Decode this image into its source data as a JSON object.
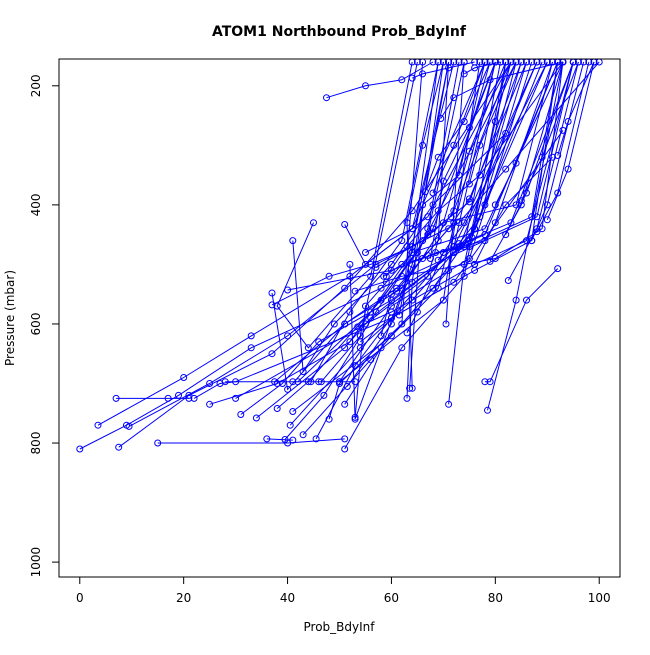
{
  "chart_data": {
    "type": "line",
    "title": "ATOM1 Northbound Prob_BdyInf",
    "xlabel": "Prob_BdyInf",
    "ylabel": "Pressure (mbar)",
    "xlim": [
      -4,
      104
    ],
    "ylim": [
      1025,
      155
    ],
    "y_reversed": true,
    "grid": false,
    "legend": "none",
    "xticks": [
      0,
      20,
      40,
      60,
      80,
      100
    ],
    "yticks": [
      200,
      400,
      600,
      800,
      1000
    ],
    "series_color": "#0000ff",
    "marker": "open-circle",
    "series": [
      {
        "x": [
          0,
          9,
          19,
          33,
          58,
          88,
          95
        ],
        "y": [
          810,
          770,
          720,
          640,
          540,
          420,
          160
        ]
      },
      {
        "x": [
          3.5,
          20,
          33,
          52,
          67,
          83
        ],
        "y": [
          770,
          690,
          620,
          520,
          420,
          160
        ]
      },
      {
        "x": [
          7.5,
          21,
          37,
          51,
          64,
          83
        ],
        "y": [
          807,
          720,
          650,
          540,
          410,
          160
        ]
      },
      {
        "x": [
          7,
          17,
          21
        ],
        "y": [
          725,
          725,
          725
        ]
      },
      {
        "x": [
          9.5,
          25,
          40,
          57,
          73,
          82,
          100
        ],
        "y": [
          772,
          700,
          620,
          500,
          430,
          340,
          160
        ]
      },
      {
        "x": [
          15,
          40,
          51
        ],
        "y": [
          800,
          800,
          793
        ]
      },
      {
        "x": [
          22,
          27,
          30,
          60,
          72,
          93
        ],
        "y": [
          725,
          700,
          697,
          590,
          530,
          275
        ]
      },
      {
        "x": [
          25,
          38,
          52,
          64,
          78,
          93
        ],
        "y": [
          735,
          700,
          630,
          480,
          440,
          160
        ]
      },
      {
        "x": [
          28,
          41,
          46,
          53
        ],
        "y": [
          697,
          697,
          697,
          697
        ]
      },
      {
        "x": [
          31,
          39,
          46,
          60,
          75,
          85
        ],
        "y": [
          752,
          700,
          630,
          560,
          460,
          160
        ]
      },
      {
        "x": [
          30,
          55,
          67,
          79
        ],
        "y": [
          725,
          600,
          520,
          160
        ]
      },
      {
        "x": [
          34,
          51,
          56,
          72,
          87,
          92
        ],
        "y": [
          758,
          640,
          590,
          480,
          420,
          160
        ]
      },
      {
        "x": [
          36,
          41
        ],
        "y": [
          793,
          795
        ]
      },
      {
        "x": [
          37.5,
          51,
          62,
          72,
          83
        ],
        "y": [
          697,
          600,
          540,
          410,
          160
        ]
      },
      {
        "x": [
          37,
          40,
          51,
          61,
          72
        ],
        "y": [
          548,
          710,
          600,
          540,
          430
        ]
      },
      {
        "x": [
          37,
          48,
          56,
          64,
          75,
          85
        ],
        "y": [
          568,
          520,
          500,
          470,
          395,
          160
        ]
      },
      {
        "x": [
          38,
          44,
          58,
          68,
          80
        ],
        "y": [
          742,
          697,
          560,
          440,
          160
        ]
      },
      {
        "x": [
          39.5,
          47,
          57,
          67,
          74
        ],
        "y": [
          794,
          720,
          580,
          450,
          160
        ]
      },
      {
        "x": [
          40,
          60,
          72,
          83,
          95
        ],
        "y": [
          543,
          510,
          470,
          430,
          160
        ]
      },
      {
        "x": [
          40.5,
          54,
          64,
          76,
          89
        ],
        "y": [
          770,
          640,
          560,
          440,
          160
        ]
      },
      {
        "x": [
          41,
          60,
          69,
          80
        ],
        "y": [
          747,
          620,
          540,
          160
        ]
      },
      {
        "x": [
          41,
          43,
          49,
          60,
          68,
          82
        ],
        "y": [
          460,
          680,
          600,
          500,
          400,
          280
        ]
      },
      {
        "x": [
          42,
          56,
          65,
          84
        ],
        "y": [
          697,
          580,
          480,
          160
        ]
      },
      {
        "x": [
          43,
          56,
          68,
          76,
          90
        ],
        "y": [
          786,
          660,
          540,
          440,
          160
        ]
      },
      {
        "x": [
          44.5,
          52,
          62,
          69
        ],
        "y": [
          697,
          580,
          460,
          160
        ]
      },
      {
        "x": [
          45,
          38,
          44,
          56,
          64
        ],
        "y": [
          430,
          570,
          640,
          520,
          160
        ]
      },
      {
        "x": [
          45.5,
          53,
          60,
          72,
          90
        ],
        "y": [
          793,
          670,
          590,
          470,
          160
        ]
      },
      {
        "x": [
          46.5,
          54,
          65
        ],
        "y": [
          697,
          620,
          160
        ]
      },
      {
        "x": [
          48,
          50,
          62,
          66
        ],
        "y": [
          760,
          700,
          600,
          160
        ]
      },
      {
        "x": [
          47.5,
          55,
          62,
          68
        ],
        "y": [
          220,
          200,
          190,
          160
        ]
      },
      {
        "x": [
          50,
          60,
          75,
          87
        ],
        "y": [
          697,
          570,
          490,
          160
        ]
      },
      {
        "x": [
          50,
          70,
          77
        ],
        "y": [
          697,
          560,
          160
        ]
      },
      {
        "x": [
          51,
          62,
          74,
          82
        ],
        "y": [
          810,
          640,
          520,
          160
        ]
      },
      {
        "x": [
          51,
          58,
          71,
          80
        ],
        "y": [
          735,
          640,
          510,
          160
        ]
      },
      {
        "x": [
          51.5,
          60,
          67,
          73
        ],
        "y": [
          705,
          600,
          440,
          160
        ]
      },
      {
        "x": [
          51,
          55,
          64,
          78
        ],
        "y": [
          433,
          500,
          440,
          160
        ]
      },
      {
        "x": [
          52,
          53,
          64,
          71
        ],
        "y": [
          500,
          760,
          500,
          160
        ]
      },
      {
        "x": [
          53,
          55,
          59,
          64,
          69
        ],
        "y": [
          757,
          570,
          530,
          480,
          160
        ]
      },
      {
        "x": [
          53,
          62,
          80,
          89,
          93
        ],
        "y": [
          545,
          520,
          490,
          440,
          160
        ]
      },
      {
        "x": [
          53.5,
          60,
          76,
          86,
          95
        ],
        "y": [
          605,
          580,
          500,
          460,
          160
        ]
      },
      {
        "x": [
          54,
          60,
          76,
          87,
          92
        ],
        "y": [
          630,
          590,
          510,
          460,
          160
        ]
      },
      {
        "x": [
          55,
          64,
          72
        ],
        "y": [
          480,
          440,
          160
        ]
      },
      {
        "x": [
          57,
          66,
          70,
          84,
          91
        ],
        "y": [
          505,
          460,
          430,
          400,
          160
        ]
      },
      {
        "x": [
          58,
          60,
          74,
          81
        ],
        "y": [
          620,
          550,
          470,
          160
        ]
      },
      {
        "x": [
          58.5,
          62,
          73,
          88
        ],
        "y": [
          520,
          500,
          470,
          160
        ]
      },
      {
        "x": [
          59,
          63,
          69,
          77,
          93
        ],
        "y": [
          520,
          470,
          410,
          350,
          160
        ]
      },
      {
        "x": [
          61,
          66,
          71,
          75,
          86
        ],
        "y": [
          545,
          490,
          440,
          390,
          160
        ]
      },
      {
        "x": [
          61.5,
          64,
          71
        ],
        "y": [
          585,
          470,
          160
        ]
      },
      {
        "x": [
          63,
          64,
          70
        ],
        "y": [
          725,
          530,
          160
        ]
      },
      {
        "x": [
          63,
          65,
          70,
          78,
          92
        ],
        "y": [
          615,
          580,
          480,
          450,
          160
        ]
      },
      {
        "x": [
          63.5,
          66,
          73,
          78
        ],
        "y": [
          708,
          400,
          350,
          160
        ]
      },
      {
        "x": [
          64,
          63,
          66,
          70
        ],
        "y": [
          708,
          430,
          300,
          160
        ]
      },
      {
        "x": [
          64,
          66,
          71,
          76
        ],
        "y": [
          187,
          180,
          170,
          160
        ]
      },
      {
        "x": [
          66.5,
          69,
          74,
          79
        ],
        "y": [
          378,
          320,
          260,
          160
        ]
      },
      {
        "x": [
          67,
          78,
          82,
          91
        ],
        "y": [
          485,
          460,
          400,
          320
        ]
      },
      {
        "x": [
          67.5,
          70,
          75,
          80
        ],
        "y": [
          490,
          360,
          270,
          160
        ]
      },
      {
        "x": [
          68,
          72,
          78
        ],
        "y": [
          380,
          300,
          160
        ]
      },
      {
        "x": [
          68.5,
          75,
          84
        ],
        "y": [
          480,
          470,
          160
        ]
      },
      {
        "x": [
          69,
          74,
          88
        ],
        "y": [
          493,
          430,
          160
        ]
      },
      {
        "x": [
          69,
          71
        ],
        "y": [
          460,
          160
        ]
      },
      {
        "x": [
          69.5,
          72,
          79,
          93
        ],
        "y": [
          255,
          220,
          190,
          160
        ]
      },
      {
        "x": [
          70.5,
          74
        ],
        "y": [
          600,
          160
        ]
      },
      {
        "x": [
          71,
          74,
          80,
          83
        ],
        "y": [
          735,
          500,
          260,
          160
        ]
      },
      {
        "x": [
          71.5,
          75,
          82
        ],
        "y": [
          420,
          310,
          160
        ]
      },
      {
        "x": [
          73,
          77,
          86
        ],
        "y": [
          465,
          420,
          160
        ]
      },
      {
        "x": [
          74,
          76,
          81
        ],
        "y": [
          180,
          170,
          160
        ]
      },
      {
        "x": [
          75,
          77,
          84
        ],
        "y": [
          365,
          300,
          160
        ]
      },
      {
        "x": [
          75.5,
          78,
          82
        ],
        "y": [
          455,
          400,
          160
        ]
      },
      {
        "x": [
          76,
          80,
          91
        ],
        "y": [
          500,
          430,
          160
        ]
      },
      {
        "x": [
          78,
          79,
          86,
          92
        ],
        "y": [
          697,
          697,
          560,
          507
        ]
      },
      {
        "x": [
          78.5,
          84,
          93
        ],
        "y": [
          745,
          560,
          160
        ]
      },
      {
        "x": [
          79,
          85,
          93
        ],
        "y": [
          495,
          400,
          160
        ]
      },
      {
        "x": [
          80,
          84,
          92
        ],
        "y": [
          400,
          330,
          160
        ]
      },
      {
        "x": [
          82,
          86,
          95
        ],
        "y": [
          450,
          380,
          160
        ]
      },
      {
        "x": [
          82.5,
          88,
          96
        ],
        "y": [
          527,
          440,
          160
        ]
      },
      {
        "x": [
          85,
          89,
          96
        ],
        "y": [
          393,
          320,
          160
        ]
      },
      {
        "x": [
          87,
          90,
          97
        ],
        "y": [
          460,
          400,
          160
        ]
      },
      {
        "x": [
          88,
          92,
          98
        ],
        "y": [
          445,
          380,
          160
        ]
      },
      {
        "x": [
          90,
          94,
          99
        ],
        "y": [
          425,
          340,
          160
        ]
      },
      {
        "x": [
          92,
          94,
          99
        ],
        "y": [
          317,
          260,
          160
        ]
      }
    ]
  }
}
